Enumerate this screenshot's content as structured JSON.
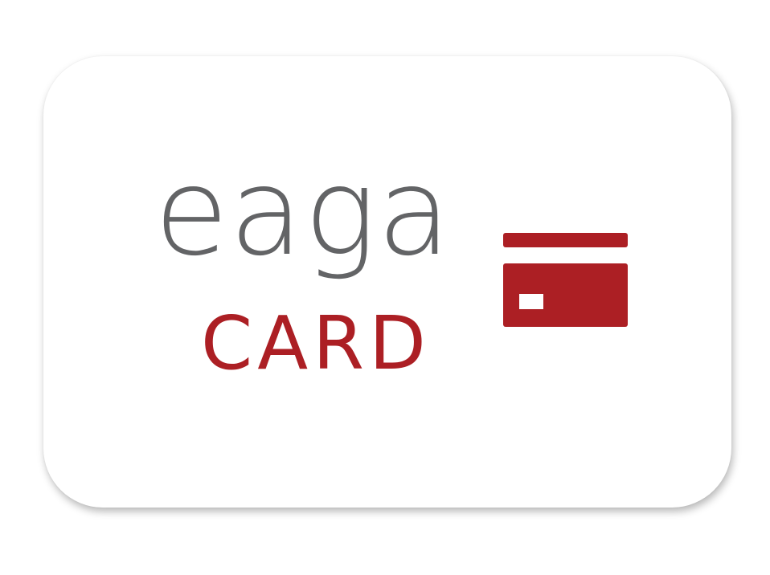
{
  "logo": {
    "wordmark": "eaga",
    "subtitle": "CARD",
    "icon": "credit-card-icon"
  },
  "colors": {
    "wordmark_gray": "#636466",
    "brand_red": "#ac1f24",
    "card_background": "#ffffff"
  }
}
